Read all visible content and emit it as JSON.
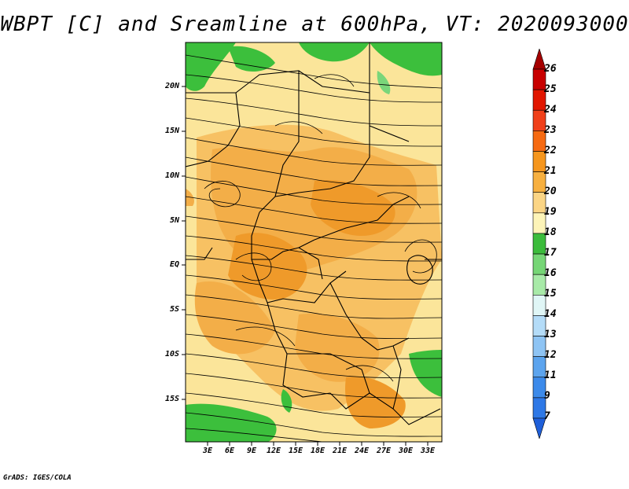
{
  "title": "WBPT [C] and Sreamline at 600hPa, VT: 2020093000",
  "credit": "GrADS: IGES/COLA",
  "map": {
    "y_ticks": [
      "20N",
      "15N",
      "10N",
      "5N",
      "EQ",
      "5S",
      "10S",
      "15S"
    ],
    "x_ticks": [
      "3E",
      "6E",
      "9E",
      "12E",
      "15E",
      "18E",
      "21E",
      "24E",
      "27E",
      "30E",
      "33E"
    ],
    "fill_colors": {
      "green_18": "#3cbf3c",
      "green_17": "#7ad67a",
      "yellow_19": "#fbe59a",
      "yellow_20": "#f9d27a",
      "orange_21": "#f3b24e",
      "orange_22": "#ef9a2a"
    }
  },
  "colorbar": {
    "levels": [
      "26",
      "25",
      "24",
      "23",
      "22",
      "21",
      "20",
      "19",
      "18",
      "17",
      "16",
      "15",
      "14",
      "13",
      "12",
      "11",
      "9",
      "7"
    ],
    "colors": [
      "#a50000",
      "#c80000",
      "#e11600",
      "#f0401a",
      "#f66a12",
      "#f5961e",
      "#f7b040",
      "#fbd585",
      "#fdf4b8",
      "#3cbc3c",
      "#76d676",
      "#a8eaa8",
      "#e0f6f6",
      "#b4dcf8",
      "#8ec4f4",
      "#5ca4ee",
      "#3c8aea",
      "#2e78e6",
      "#1f5fd9"
    ]
  }
}
